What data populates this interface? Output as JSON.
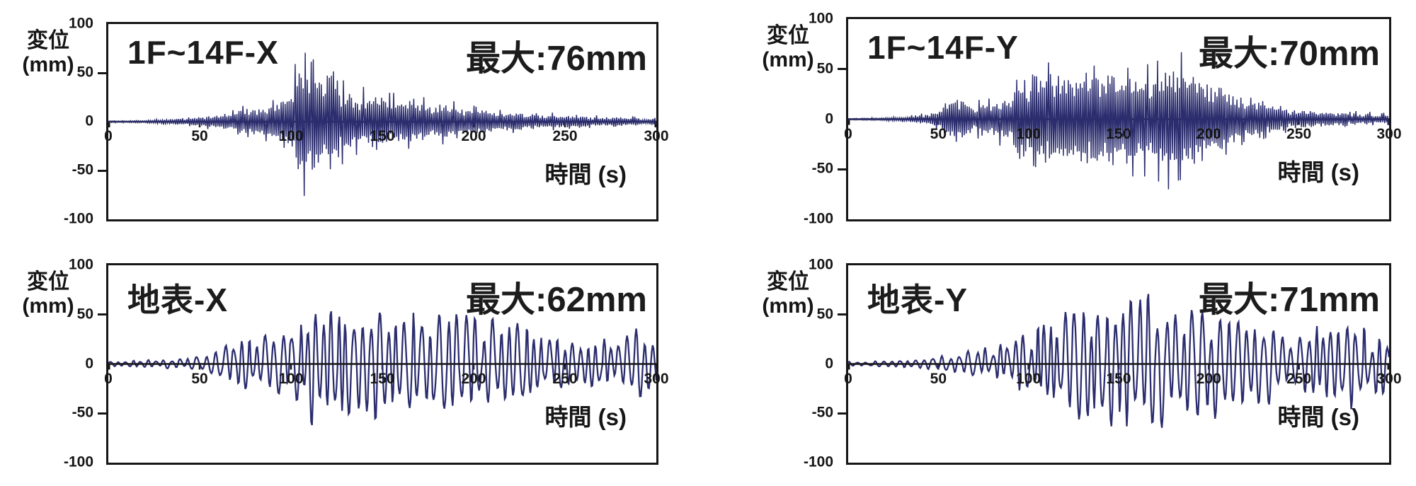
{
  "figure": {
    "description": "Four displacement time-history waveforms (building floors and ground surface, X and Y directions)"
  },
  "colors": {
    "trace": "#2b2d6e",
    "axis": "#161616",
    "text": "#1c1c1c",
    "background": "#ffffff"
  },
  "chart_data": [
    {
      "type": "line",
      "id": "floors-x",
      "title": "1F~14F-X",
      "max_label": "最大:76mm",
      "max_mm": 76,
      "ylabel_line1": "変位",
      "ylabel_line2": "(mm)",
      "xlabel": "時間 (s)",
      "xlim": [
        0,
        300
      ],
      "ylim": [
        -100,
        100
      ],
      "x_ticks": [
        0,
        50,
        100,
        150,
        200,
        250,
        300
      ],
      "y_ticks": [
        100,
        50,
        0,
        -50,
        -100
      ],
      "waveform": {
        "style": "dense",
        "seed": 101,
        "envelope_t": [
          0,
          20,
          30,
          40,
          50,
          60,
          70,
          80,
          90,
          97,
          103,
          107,
          112,
          120,
          130,
          140,
          150,
          160,
          170,
          180,
          190,
          200,
          210,
          220,
          230,
          240,
          250,
          260,
          270,
          280,
          290,
          300
        ],
        "envelope_mm": [
          1,
          1.5,
          3,
          4,
          6,
          10,
          14,
          18,
          24,
          40,
          68,
          76,
          65,
          52,
          42,
          34,
          32,
          28,
          26,
          24,
          20,
          17,
          14,
          12,
          10,
          9,
          8,
          7,
          6,
          6,
          5,
          5
        ]
      }
    },
    {
      "type": "line",
      "id": "floors-y",
      "title": "1F~14F-Y",
      "max_label": "最大:70mm",
      "max_mm": 70,
      "ylabel_line1": "変位",
      "ylabel_line2": "(mm)",
      "xlabel": "時間 (s)",
      "xlim": [
        0,
        300
      ],
      "ylim": [
        -100,
        100
      ],
      "x_ticks": [
        0,
        50,
        100,
        150,
        200,
        250,
        300
      ],
      "y_ticks": [
        100,
        50,
        0,
        -50,
        -100
      ],
      "waveform": {
        "style": "dense",
        "seed": 202,
        "envelope_t": [
          0,
          20,
          30,
          40,
          50,
          55,
          58,
          62,
          70,
          80,
          90,
          100,
          107,
          115,
          125,
          135,
          145,
          155,
          165,
          175,
          182,
          190,
          200,
          210,
          220,
          230,
          240,
          250,
          260,
          270,
          280,
          290,
          300
        ],
        "envelope_mm": [
          1,
          1.5,
          3,
          5,
          10,
          22,
          32,
          26,
          18,
          22,
          28,
          55,
          70,
          58,
          55,
          64,
          55,
          60,
          55,
          62,
          68,
          55,
          48,
          38,
          26,
          20,
          15,
          12,
          10,
          9,
          8,
          7,
          6
        ]
      }
    },
    {
      "type": "line",
      "id": "ground-x",
      "title": "地表-X",
      "max_label": "最大:62mm",
      "max_mm": 62,
      "ylabel_line1": "変位",
      "ylabel_line2": "(mm)",
      "xlabel": "時間 (s)",
      "xlim": [
        0,
        300
      ],
      "ylim": [
        -100,
        100
      ],
      "x_ticks": [
        0,
        50,
        100,
        150,
        200,
        250,
        300
      ],
      "y_ticks": [
        100,
        50,
        0,
        -50,
        -100
      ],
      "waveform": {
        "style": "wave",
        "seed": 303,
        "envelope_t": [
          0,
          20,
          40,
          50,
          60,
          70,
          80,
          90,
          100,
          108,
          113,
          120,
          130,
          140,
          150,
          160,
          170,
          180,
          190,
          200,
          210,
          220,
          230,
          240,
          250,
          260,
          270,
          280,
          290,
          300
        ],
        "envelope_mm": [
          2,
          3,
          4,
          7,
          12,
          18,
          25,
          28,
          32,
          48,
          62,
          50,
          40,
          48,
          55,
          45,
          42,
          40,
          42,
          45,
          40,
          35,
          32,
          25,
          22,
          25,
          22,
          20,
          30,
          25
        ]
      }
    },
    {
      "type": "line",
      "id": "ground-y",
      "title": "地表-Y",
      "max_label": "最大:71mm",
      "max_mm": 71,
      "ylabel_line1": "変位",
      "ylabel_line2": "(mm)",
      "xlabel": "時間 (s)",
      "xlim": [
        0,
        300
      ],
      "ylim": [
        -100,
        100
      ],
      "x_ticks": [
        0,
        50,
        100,
        150,
        200,
        250,
        300
      ],
      "y_ticks": [
        100,
        50,
        0,
        -50,
        -100
      ],
      "waveform": {
        "style": "wave",
        "seed": 404,
        "envelope_t": [
          0,
          20,
          40,
          50,
          60,
          70,
          80,
          90,
          100,
          110,
          120,
          130,
          140,
          150,
          160,
          170,
          180,
          190,
          200,
          210,
          220,
          230,
          240,
          250,
          260,
          270,
          280,
          290,
          300
        ],
        "envelope_mm": [
          2,
          3,
          4,
          7,
          10,
          13,
          16,
          20,
          28,
          42,
          52,
          55,
          60,
          71,
          62,
          66,
          58,
          55,
          50,
          45,
          48,
          42,
          36,
          32,
          36,
          44,
          40,
          30,
          32
        ]
      }
    }
  ]
}
